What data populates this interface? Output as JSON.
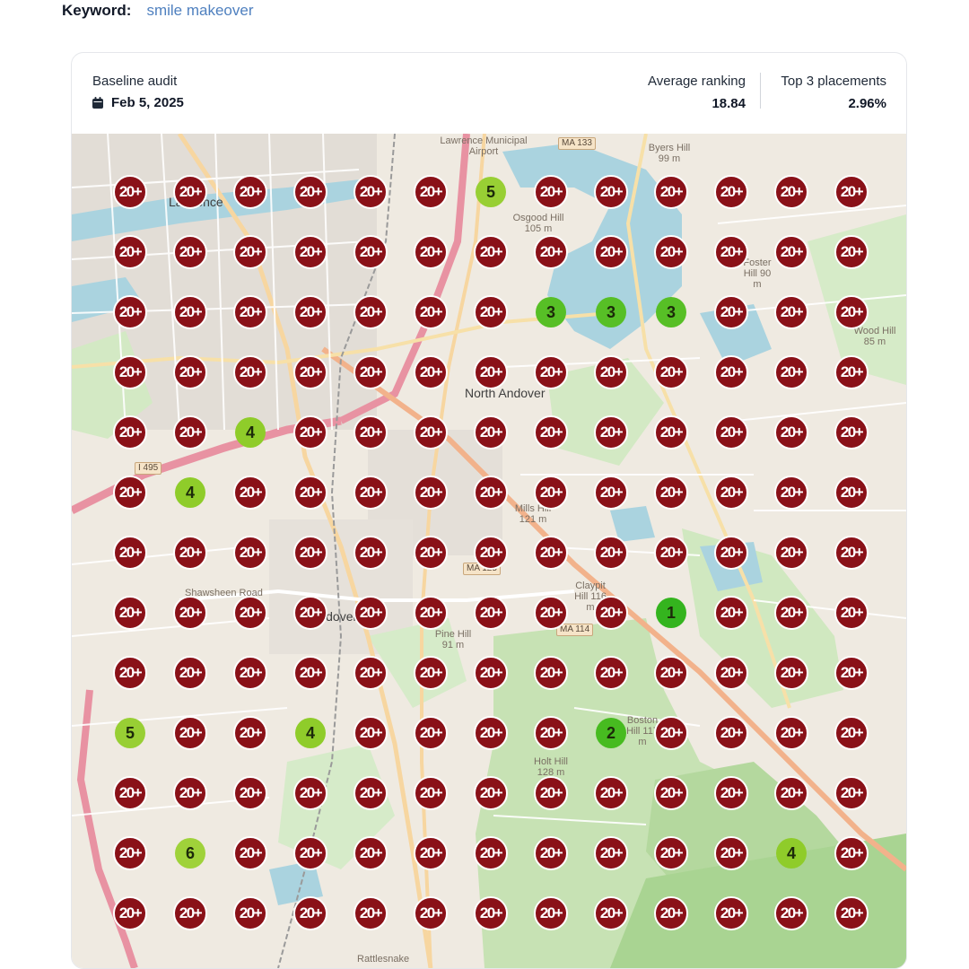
{
  "keyword": {
    "label": "Keyword:",
    "value": "smile makeover"
  },
  "header": {
    "audit_title": "Baseline audit",
    "audit_date": "Feb 5, 2025",
    "calendar_icon": "calendar-icon",
    "average_ranking_label": "Average ranking",
    "average_ranking_value": "18.84",
    "top3_label": "Top 3 placements",
    "top3_value": "2.96%"
  },
  "colors": {
    "no_rank": "#8a1118",
    "rank_1": "#34b41e",
    "rank_2": "#47bb20",
    "rank_3": "#57bf26",
    "rank_4": "#8fcc2a",
    "rank_5": "#98cf34",
    "rank_6": "#9fd23a",
    "keyword": "#4f80bf"
  },
  "map_labels": [
    {
      "text": "Lawrence",
      "big": true
    },
    {
      "text": "North Andover",
      "big": true
    },
    {
      "text": "Andover",
      "big": true
    },
    {
      "text": "Lawrence Municipal Airport"
    },
    {
      "text": "Osgood Hill 105 m"
    },
    {
      "text": "Byers Hill 99 m"
    },
    {
      "text": "Foster Hill 90 m"
    },
    {
      "text": "Wood Hill 85 m"
    },
    {
      "text": "Mills Hill 121 m"
    },
    {
      "text": "Claypit Hill 116 m"
    },
    {
      "text": "Pine Hill 91 m"
    },
    {
      "text": "Boston Hill 117 m"
    },
    {
      "text": "Holt Hill 128 m"
    },
    {
      "text": "Rattlesnake"
    },
    {
      "text": "Shawsheen Road"
    }
  ],
  "road_shields": [
    "MA 133",
    "MA 125",
    "MA 114",
    "I 495"
  ],
  "grid": {
    "rows": [
      [
        "20+",
        "20+",
        "20+",
        "20+",
        "20+",
        "20+",
        "5",
        "20+",
        "20+",
        "20+",
        "20+",
        "20+",
        "20+"
      ],
      [
        "20+",
        "20+",
        "20+",
        "20+",
        "20+",
        "20+",
        "20+",
        "20+",
        "20+",
        "20+",
        "20+",
        "20+",
        "20+"
      ],
      [
        "20+",
        "20+",
        "20+",
        "20+",
        "20+",
        "20+",
        "20+",
        "3",
        "3",
        "3",
        "20+",
        "20+",
        "20+"
      ],
      [
        "20+",
        "20+",
        "20+",
        "20+",
        "20+",
        "20+",
        "20+",
        "20+",
        "20+",
        "20+",
        "20+",
        "20+",
        "20+"
      ],
      [
        "20+",
        "20+",
        "4",
        "20+",
        "20+",
        "20+",
        "20+",
        "20+",
        "20+",
        "20+",
        "20+",
        "20+",
        "20+"
      ],
      [
        "20+",
        "4",
        "20+",
        "20+",
        "20+",
        "20+",
        "20+",
        "20+",
        "20+",
        "20+",
        "20+",
        "20+",
        "20+"
      ],
      [
        "20+",
        "20+",
        "20+",
        "20+",
        "20+",
        "20+",
        "20+",
        "20+",
        "20+",
        "20+",
        "20+",
        "20+",
        "20+"
      ],
      [
        "20+",
        "20+",
        "20+",
        "20+",
        "20+",
        "20+",
        "20+",
        "20+",
        "20+",
        "1",
        "20+",
        "20+",
        "20+"
      ],
      [
        "20+",
        "20+",
        "20+",
        "20+",
        "20+",
        "20+",
        "20+",
        "20+",
        "20+",
        "20+",
        "20+",
        "20+",
        "20+"
      ],
      [
        "5",
        "20+",
        "20+",
        "4",
        "20+",
        "20+",
        "20+",
        "20+",
        "2",
        "20+",
        "20+",
        "20+",
        "20+"
      ],
      [
        "20+",
        "20+",
        "20+",
        "20+",
        "20+",
        "20+",
        "20+",
        "20+",
        "20+",
        "20+",
        "20+",
        "20+",
        "20+"
      ],
      [
        "20+",
        "6",
        "20+",
        "20+",
        "20+",
        "20+",
        "20+",
        "20+",
        "20+",
        "20+",
        "20+",
        "4",
        "20+"
      ],
      [
        "20+",
        "20+",
        "20+",
        "20+",
        "20+",
        "20+",
        "20+",
        "20+",
        "20+",
        "20+",
        "20+",
        "20+",
        "20+"
      ]
    ]
  }
}
